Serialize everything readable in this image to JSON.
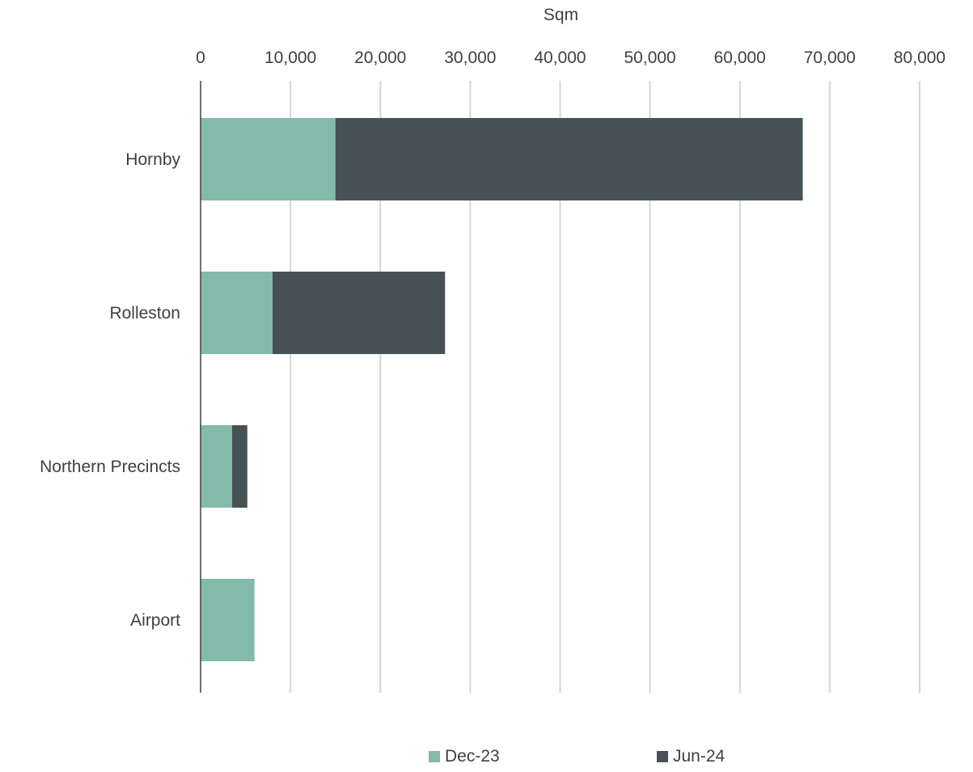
{
  "chart_data": {
    "type": "bar",
    "orientation": "horizontal",
    "stacked": true,
    "title": "",
    "xlabel": "Sqm",
    "ylabel": "",
    "categories": [
      "Hornby",
      "Rolleston",
      "Northern Precincts",
      "Airport"
    ],
    "series": [
      {
        "name": "Dec-23",
        "color": "#83BAAA",
        "values": [
          15000,
          8000,
          3500,
          6000
        ]
      },
      {
        "name": "Jun-24",
        "color": "#475256",
        "values": [
          52000,
          19200,
          1700,
          0
        ]
      }
    ],
    "xlim": [
      0,
      80000
    ],
    "xticks": [
      0,
      10000,
      20000,
      30000,
      40000,
      50000,
      60000,
      70000,
      80000
    ],
    "xtick_labels": [
      "0",
      "10,000",
      "20,000",
      "30,000",
      "40,000",
      "50,000",
      "60,000",
      "70,000",
      "80,000"
    ],
    "x_axis_position": "top",
    "grid": true,
    "legend_position": "bottom"
  }
}
